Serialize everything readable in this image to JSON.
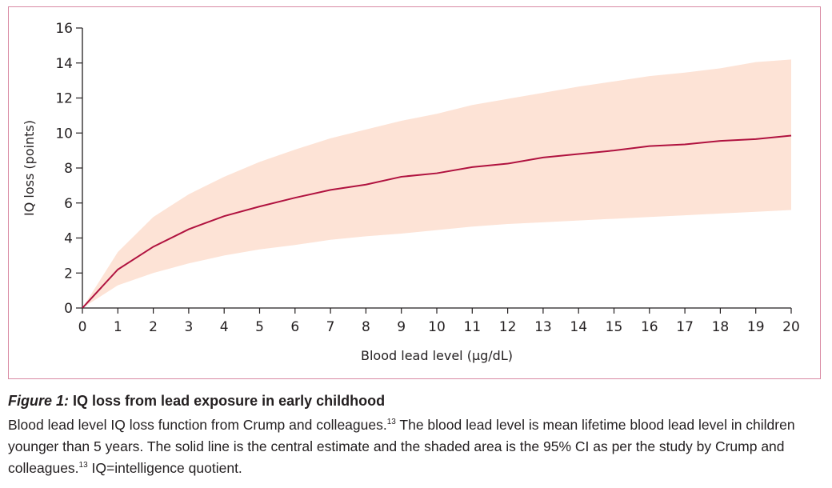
{
  "chart_data": {
    "type": "line",
    "xlabel": "Blood lead level (µg/dL)",
    "ylabel": "IQ loss (points)",
    "xlim": [
      0,
      20
    ],
    "ylim": [
      0,
      16
    ],
    "x_ticks": [
      0,
      1,
      2,
      3,
      4,
      5,
      6,
      7,
      8,
      9,
      10,
      11,
      12,
      13,
      14,
      15,
      16,
      17,
      18,
      19,
      20
    ],
    "y_ticks": [
      0,
      2,
      4,
      6,
      8,
      10,
      12,
      14,
      16
    ],
    "grid": false,
    "line_color": "#b0123f",
    "band_color": "#fde3d6",
    "series": [
      {
        "x": [
          0,
          1,
          2,
          3,
          4,
          5,
          6,
          7,
          8,
          9,
          10,
          11,
          12,
          13,
          14,
          15,
          16,
          17,
          18,
          19,
          20
        ],
        "values": [
          0,
          2.2,
          3.5,
          4.5,
          5.25,
          5.8,
          6.3,
          6.75,
          7.05,
          7.5,
          7.7,
          8.05,
          8.25,
          8.6,
          8.8,
          9.0,
          9.25,
          9.35,
          9.55,
          9.65,
          9.85
        ],
        "band_upper": [
          0,
          3.2,
          5.2,
          6.5,
          7.5,
          8.35,
          9.05,
          9.7,
          10.2,
          10.7,
          11.1,
          11.6,
          11.95,
          12.3,
          12.65,
          12.95,
          13.25,
          13.45,
          13.7,
          14.05,
          14.2
        ],
        "band_lower": [
          0,
          1.3,
          2.0,
          2.55,
          3.0,
          3.35,
          3.6,
          3.9,
          4.1,
          4.25,
          4.45,
          4.65,
          4.8,
          4.9,
          5.0,
          5.1,
          5.2,
          5.3,
          5.4,
          5.5,
          5.6
        ]
      }
    ]
  },
  "caption": {
    "figure_label": "Figure 1:",
    "title": "IQ loss from lead exposure in early childhood",
    "body_part1": "Blood lead level IQ loss function from Crump and colleagues.",
    "ref1": "13",
    "body_part2": " The blood lead level is mean lifetime blood lead level in children younger than 5 years. The solid line is the central estimate and the shaded area is the 95% CI as per the study by Crump and colleagues.",
    "ref2": "13",
    "body_part3": " IQ=intelligence quotient."
  }
}
